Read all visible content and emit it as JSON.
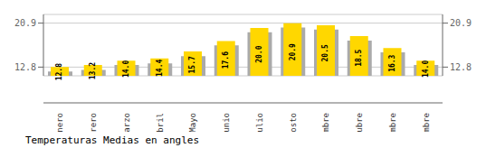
{
  "chart_data": {
    "type": "bar",
    "title": "Temperaturas Medias en angles",
    "categories": [
      "Enero",
      "Febrero",
      "Marzo",
      "Abril",
      "Mayo",
      "Junio",
      "Julio",
      "Agosto",
      "Septiembre",
      "Octubre",
      "Noviembre",
      "Diciembre"
    ],
    "series": [
      {
        "color": "#AAAAAA",
        "values": [
          12.0,
          12.3,
          13.2,
          13.5,
          14.8,
          16.8,
          19.2,
          20.1,
          19.7,
          17.7,
          15.5,
          13.2
        ]
      },
      {
        "color": "#FFD700",
        "values": [
          12.8,
          13.2,
          14.0,
          14.4,
          15.7,
          17.6,
          20.0,
          20.9,
          20.5,
          18.5,
          16.3,
          14.0
        ],
        "data_labels": true,
        "value_labels": [
          "12.8",
          "13.2",
          "14.0",
          "14.4",
          "15.7",
          "17.6",
          "20.0",
          "20.9",
          "20.5",
          "18.5",
          "16.3",
          "14.0"
        ]
      }
    ],
    "ylim": [
      11.2,
      22.5
    ],
    "yticks": [
      12.8,
      20.9
    ],
    "y2lim": [
      11.2,
      22.5
    ],
    "y2ticks": [
      12.8,
      20.9
    ],
    "grid": true
  }
}
